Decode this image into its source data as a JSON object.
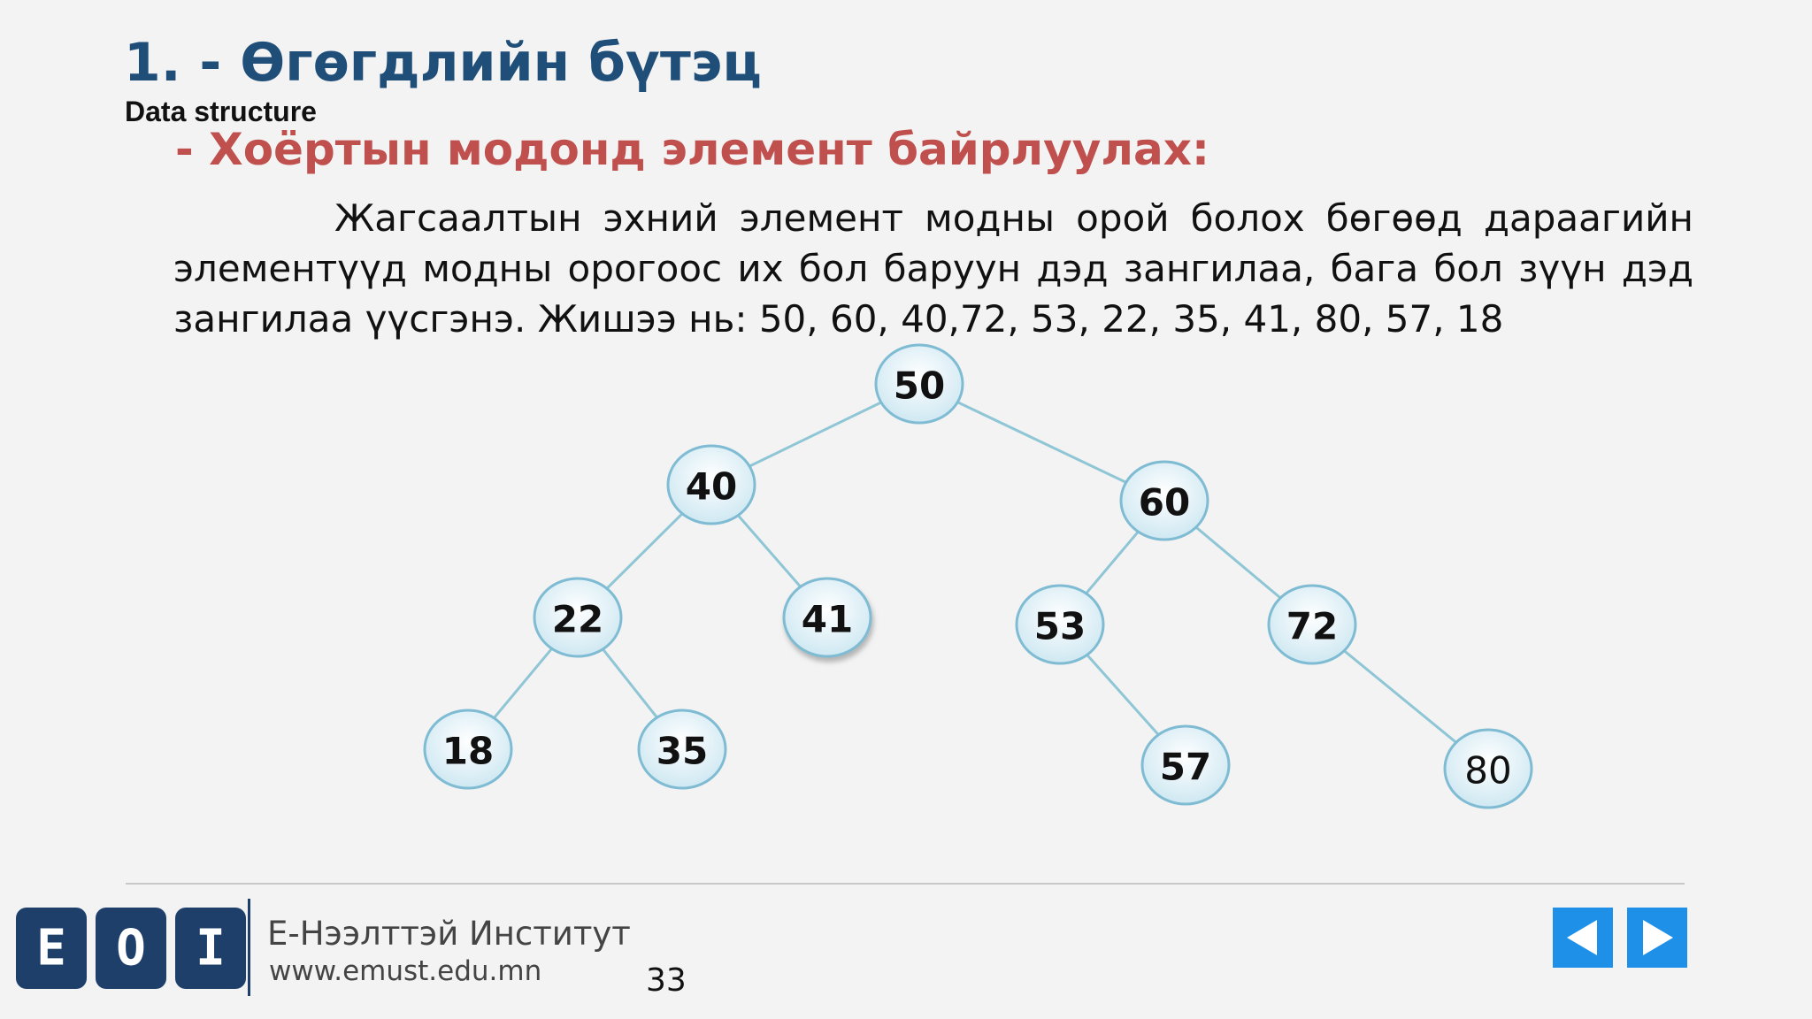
{
  "slide": {
    "title_number": "1. - ",
    "title_text": "Өгөгдлийн бүтэц",
    "subtitle_en": "Data structure",
    "heading": "- Хоёртын модонд элемент байрлуулах:",
    "paragraph_lines": [
      "Жагсаалтын эхний элемент модны орой болох бөгөөд дараагийн",
      "элементүүд модны орогоос их бол баруун дэд зангилаа, бага бол зүүн дэд",
      "зангилаа үүсгэнэ. Жишээ нь: 50, 60, 40,72, 53, 22, 35, 41, 80, 57, 18"
    ]
  },
  "tree": {
    "nodes": [
      "50",
      "40",
      "60",
      "22",
      "41",
      "53",
      "72",
      "18",
      "35",
      "57",
      "80"
    ],
    "edges": [
      [
        "50",
        "40"
      ],
      [
        "50",
        "60"
      ],
      [
        "40",
        "22"
      ],
      [
        "40",
        "41"
      ],
      [
        "60",
        "53"
      ],
      [
        "60",
        "72"
      ],
      [
        "22",
        "18"
      ],
      [
        "22",
        "35"
      ],
      [
        "53",
        "57"
      ],
      [
        "72",
        "80"
      ]
    ]
  },
  "footer": {
    "logo_letters": [
      "E",
      "O",
      "I"
    ],
    "institute": "Е-Нээлттэй Институт",
    "url": "www.emust.edu.mn",
    "page_number": "33"
  },
  "colors": {
    "title": "#1f4e79",
    "heading": "#c0504d",
    "node_fill": "#dff0f6",
    "node_stroke": "#7fbcd3",
    "edge": "#8fc6d6",
    "nav_button": "#1e90e8",
    "logo": "#1f3f6b"
  },
  "icons": {
    "prev": "triangle-left-icon",
    "next": "triangle-right-icon"
  }
}
